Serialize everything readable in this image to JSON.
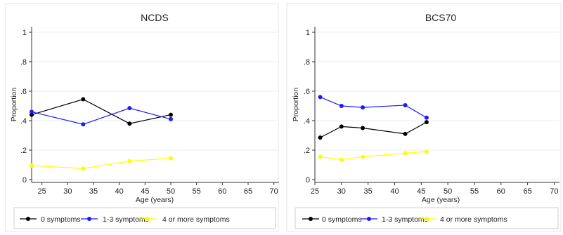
{
  "chart_data": [
    {
      "type": "line",
      "title": "NCDS",
      "xlabel": "Age (years)",
      "ylabel": "Proportion",
      "xlim": [
        23,
        71
      ],
      "ylim": [
        0,
        1
      ],
      "xticks": [
        25,
        30,
        35,
        40,
        45,
        50,
        55,
        60,
        65,
        70
      ],
      "xtick_labels": [
        "25",
        "30",
        "35",
        "40",
        "45",
        "50",
        "55",
        "60",
        "65",
        "70"
      ],
      "yticks": [
        0,
        0.2,
        0.4,
        0.6,
        0.8,
        1
      ],
      "ytick_labels": [
        "0",
        ".2",
        ".4",
        ".6",
        ".8",
        "1"
      ],
      "grid": "horizontal",
      "legend_position": "bottom",
      "x": [
        23,
        33,
        42,
        50
      ],
      "series": [
        {
          "name": "0 symptoms",
          "color": "#000000",
          "values": [
            0.44,
            0.545,
            0.38,
            0.44
          ]
        },
        {
          "name": "1-3 symptoms",
          "color": "#1a1aff",
          "values": [
            0.46,
            0.375,
            0.485,
            0.41
          ]
        },
        {
          "name": "4 or more symptoms",
          "color": "#ffff00",
          "values": [
            0.095,
            0.075,
            0.125,
            0.145
          ]
        }
      ]
    },
    {
      "type": "line",
      "title": "BCS70",
      "xlabel": "Age (years)",
      "ylabel": "Proportion",
      "xlim": [
        25,
        71
      ],
      "ylim": [
        0,
        1
      ],
      "xticks": [
        25,
        30,
        35,
        40,
        45,
        50,
        55,
        60,
        65,
        70
      ],
      "xtick_labels": [
        "25",
        "30",
        "35",
        "40",
        "45",
        "50",
        "55",
        "60",
        "65",
        "70"
      ],
      "yticks": [
        0,
        0.2,
        0.4,
        0.6,
        0.8,
        1
      ],
      "ytick_labels": [
        "0",
        ".2",
        ".4",
        ".6",
        ".8",
        "1"
      ],
      "grid": "horizontal",
      "legend_position": "bottom",
      "x": [
        26,
        30,
        34,
        42,
        46
      ],
      "series": [
        {
          "name": "0 symptoms",
          "color": "#000000",
          "values": [
            0.285,
            0.36,
            0.35,
            0.31,
            0.39
          ]
        },
        {
          "name": "1-3 symptoms",
          "color": "#1a1aff",
          "values": [
            0.56,
            0.5,
            0.49,
            0.505,
            0.42
          ]
        },
        {
          "name": "4 or more symptoms",
          "color": "#ffff00",
          "values": [
            0.155,
            0.135,
            0.155,
            0.18,
            0.19
          ]
        }
      ]
    }
  ]
}
